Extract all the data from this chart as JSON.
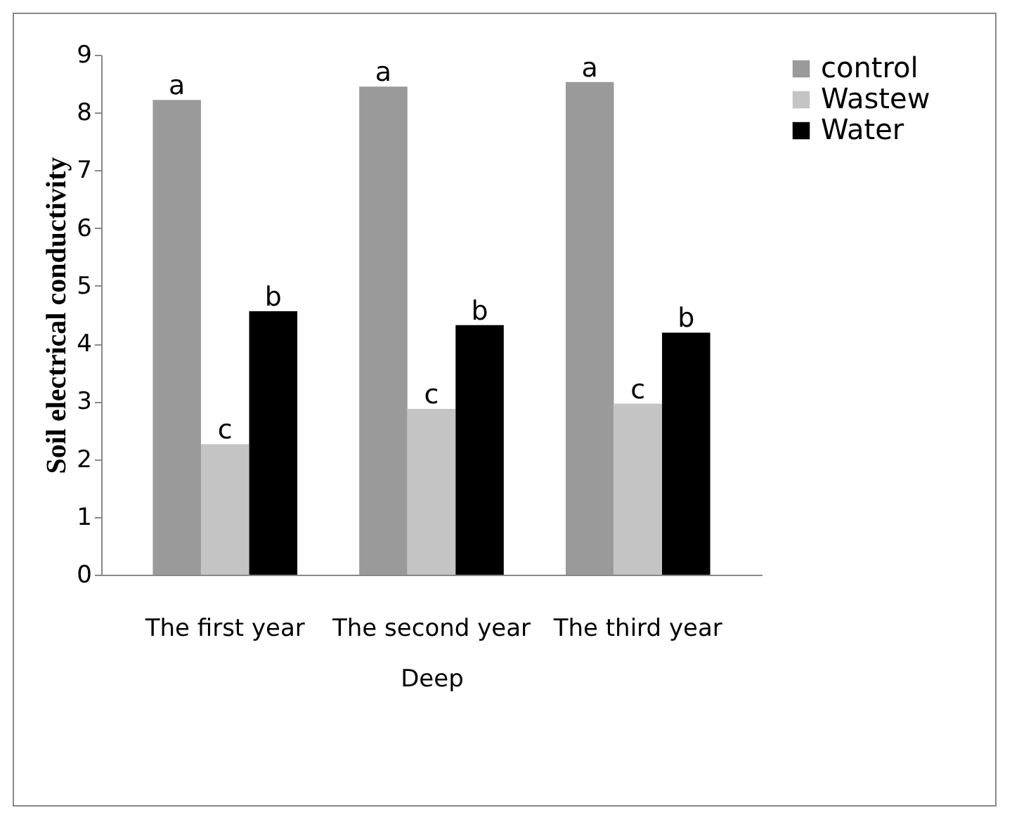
{
  "chart_data": {
    "type": "bar",
    "xlabel": "Deep",
    "ylabel": "Soil electrical conductivity",
    "categories": [
      "The first year",
      "The second year",
      "The third year"
    ],
    "series": [
      {
        "name": "control",
        "color": "#9a9a9a",
        "values": [
          8.22,
          8.45,
          8.53
        ],
        "value_labels": [
          "a",
          "a",
          "a"
        ]
      },
      {
        "name": "Wastew",
        "color": "#c4c4c4",
        "values": [
          2.26,
          2.87,
          2.96
        ],
        "value_labels": [
          "c",
          "c",
          "c"
        ]
      },
      {
        "name": "Water",
        "color": "#000000",
        "values": [
          4.56,
          4.32,
          4.19
        ],
        "value_labels": [
          "b",
          "b",
          "b"
        ]
      }
    ],
    "ylim": [
      0,
      9
    ],
    "yticks": [
      0,
      1,
      2,
      3,
      4,
      5,
      6,
      7,
      8,
      9
    ],
    "grid": false,
    "legend": "right"
  }
}
